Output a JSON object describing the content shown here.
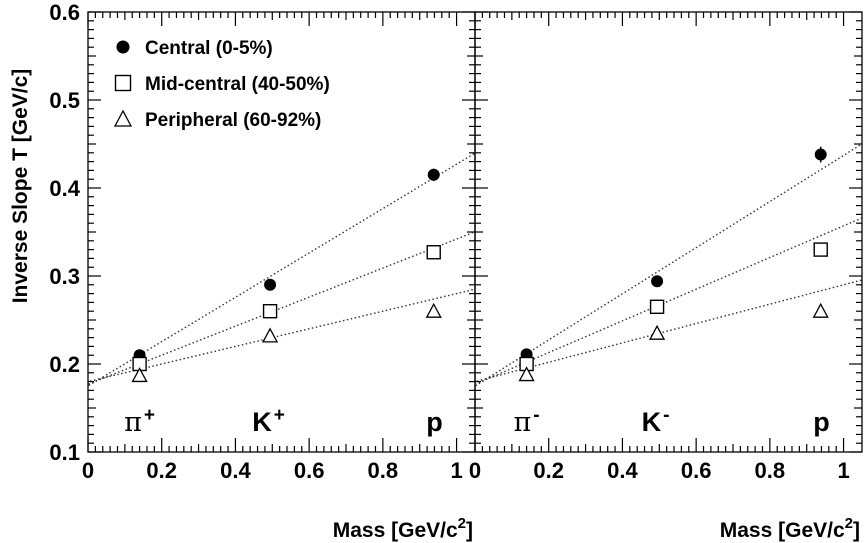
{
  "chart_data": {
    "type": "scatter",
    "ylabel": "Inverse Slope T [GeV/c]",
    "xlabel_main": "Mass [GeV/c",
    "xlabel_sup": "2",
    "xlabel_end": "]",
    "xlim": [
      0,
      1.05
    ],
    "ylim": [
      0.1,
      0.6
    ],
    "xticks": [
      "0",
      "0.2",
      "0.4",
      "0.6",
      "0.8",
      "1"
    ],
    "xtick_values": [
      0,
      0.2,
      0.4,
      0.6,
      0.8,
      1.0
    ],
    "yticks": [
      "0.1",
      "0.2",
      "0.3",
      "0.4",
      "0.5",
      "0.6"
    ],
    "ytick_values": [
      0.1,
      0.2,
      0.3,
      0.4,
      0.5,
      0.6
    ],
    "legend": [
      {
        "label": "Central (0-5%)",
        "marker": "filled-circle"
      },
      {
        "label": "Mid-central (40-50%)",
        "marker": "open-square"
      },
      {
        "label": "Peripheral (60-92%)",
        "marker": "open-triangle"
      }
    ],
    "panels": [
      {
        "particle_labels": [
          {
            "base": "π",
            "sup": "+",
            "pi": true,
            "x": 0.14
          },
          {
            "base": "K",
            "sup": "+",
            "pi": false,
            "x": 0.49
          },
          {
            "base": "p",
            "sup": "",
            "pi": false,
            "x": 0.94
          }
        ],
        "series": [
          {
            "marker": "filled-circle",
            "x": [
              0.14,
              0.494,
              0.938
            ],
            "y": [
              0.21,
              0.29,
              0.415
            ],
            "err": [
              0.003,
              0.004,
              0.007
            ],
            "fit": [
              0.175,
              0.252
            ]
          },
          {
            "marker": "open-square",
            "x": [
              0.14,
              0.494,
              0.938
            ],
            "y": [
              0.2,
              0.26,
              0.327
            ],
            "err": [
              0,
              0,
              0
            ],
            "fit": [
              0.177,
              0.165
            ]
          },
          {
            "marker": "open-triangle",
            "x": [
              0.14,
              0.494,
              0.938
            ],
            "y": [
              0.187,
              0.232,
              0.26
            ],
            "err": [
              0,
              0,
              0
            ],
            "fit": [
              0.18,
              0.1
            ]
          }
        ]
      },
      {
        "particle_labels": [
          {
            "base": "π",
            "sup": "-",
            "pi": true,
            "x": 0.14
          },
          {
            "base": "K",
            "sup": "-",
            "pi": false,
            "x": 0.49
          },
          {
            "base": "p",
            "sup": "",
            "pi": false,
            "x": 0.94
          }
        ],
        "series": [
          {
            "marker": "filled-circle",
            "x": [
              0.14,
              0.494,
              0.938
            ],
            "y": [
              0.211,
              0.294,
              0.438
            ],
            "err": [
              0.003,
              0.004,
              0.009
            ],
            "fit": [
              0.175,
              0.262
            ]
          },
          {
            "marker": "open-square",
            "x": [
              0.14,
              0.494,
              0.938
            ],
            "y": [
              0.2,
              0.265,
              0.33
            ],
            "err": [
              0,
              0,
              0
            ],
            "fit": [
              0.177,
              0.18
            ]
          },
          {
            "marker": "open-triangle",
            "x": [
              0.14,
              0.494,
              0.938
            ],
            "y": [
              0.188,
              0.235,
              0.26
            ],
            "err": [
              0,
              0,
              0
            ],
            "fit": [
              0.18,
              0.11
            ]
          }
        ]
      }
    ]
  }
}
